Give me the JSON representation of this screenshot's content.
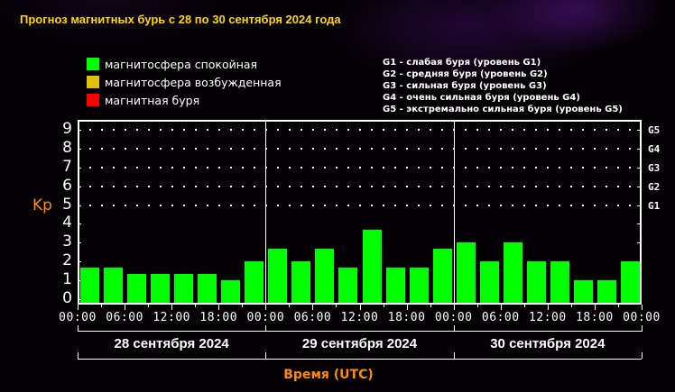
{
  "title": "Прогноз магнитных бурь с 28 по 30 сентября 2024 года",
  "legend": [
    {
      "label": "магнитосфера спокойная",
      "color": "#00ff00"
    },
    {
      "label": "магнитосфера возбужденная",
      "color": "#e0c000"
    },
    {
      "label": "магнитная буря",
      "color": "#ff0000"
    }
  ],
  "g_legend": [
    "G1 - слабая буря (уровень G1)",
    "G2 - средняя буря (уровень G2)",
    "G3 - сильная буря (уровень G3)",
    "G4 - очень сильная буря (уровень G4)",
    "G5 - экстремально сильная буря (уровень G5)"
  ],
  "chart_data": {
    "type": "bar",
    "title": "Прогноз магнитных бурь с 28 по 30 сентября 2024 года",
    "ylabel": "Kp",
    "xlabel": "Время (UTC)",
    "ylim": [
      0,
      9
    ],
    "yticks": [
      "0",
      "1",
      "2",
      "3",
      "4",
      "5",
      "6",
      "7",
      "8",
      "9"
    ],
    "right_ticks": [
      {
        "label": "G1",
        "kp": 5
      },
      {
        "label": "G2",
        "kp": 6
      },
      {
        "label": "G3",
        "kp": 7
      },
      {
        "label": "G4",
        "kp": 8
      },
      {
        "label": "G5",
        "kp": 9
      }
    ],
    "xtick_labels": [
      "00:00",
      "06:00",
      "12:00",
      "18:00",
      "00:00",
      "06:00",
      "12:00",
      "18:00",
      "00:00",
      "06:00",
      "12:00",
      "18:00",
      "00:00"
    ],
    "days": [
      {
        "label": "28 сентября 2024",
        "values": [
          1.67,
          1.67,
          1.33,
          1.33,
          1.33,
          1.33,
          1.0,
          2.0
        ]
      },
      {
        "label": "29 сентября 2024",
        "values": [
          2.67,
          2.0,
          2.67,
          1.67,
          3.67,
          1.67,
          1.67,
          2.67
        ]
      },
      {
        "label": "30 сентября 2024",
        "values": [
          3.0,
          2.0,
          3.0,
          2.0,
          2.0,
          1.0,
          1.0,
          2.0
        ]
      }
    ],
    "interval_hours": 3,
    "bar_color": "#00ff00",
    "grid": "dotted"
  }
}
